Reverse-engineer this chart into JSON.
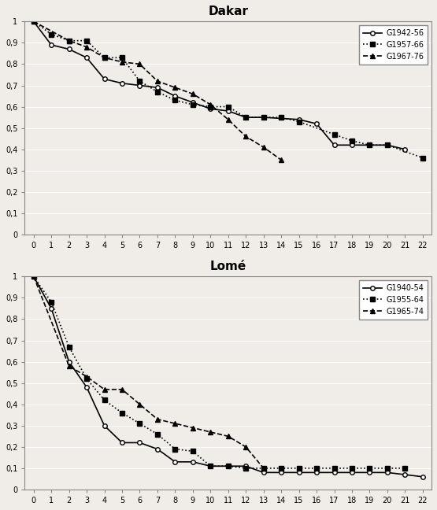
{
  "dakar": {
    "title": "Dakar",
    "x": [
      0,
      1,
      2,
      3,
      4,
      5,
      6,
      7,
      8,
      9,
      10,
      11,
      12,
      13,
      14,
      15,
      16,
      17,
      18,
      19,
      20,
      21,
      22
    ],
    "G1942_56": [
      1.0,
      0.89,
      0.87,
      0.83,
      0.73,
      0.71,
      0.7,
      0.69,
      0.65,
      0.62,
      0.59,
      0.58,
      0.55,
      0.55,
      null,
      0.54,
      0.52,
      0.42,
      0.42,
      0.42,
      0.42,
      0.4,
      null
    ],
    "G1957_66": [
      1.0,
      0.94,
      0.91,
      0.91,
      0.83,
      0.83,
      0.72,
      0.67,
      0.63,
      0.61,
      0.6,
      0.6,
      0.55,
      0.55,
      0.55,
      0.53,
      null,
      0.47,
      0.44,
      0.42,
      0.42,
      null,
      0.36
    ],
    "G1967_76": [
      1.0,
      null,
      0.91,
      0.88,
      0.83,
      0.81,
      0.8,
      0.72,
      0.69,
      0.66,
      0.61,
      0.54,
      0.46,
      0.41,
      0.35,
      null,
      null,
      null,
      null,
      null,
      null,
      null,
      null
    ],
    "legend": [
      "G1942-56",
      "G1957-66",
      "G1967-76"
    ]
  },
  "lome": {
    "title": "Lomé",
    "x": [
      0,
      1,
      2,
      3,
      4,
      5,
      6,
      7,
      8,
      9,
      10,
      11,
      12,
      13,
      14,
      15,
      16,
      17,
      18,
      19,
      20,
      21,
      22
    ],
    "G1940_54": [
      1.0,
      0.85,
      0.6,
      0.48,
      0.3,
      0.22,
      0.22,
      0.19,
      0.13,
      0.13,
      0.11,
      0.11,
      0.11,
      0.08,
      0.08,
      0.08,
      0.08,
      0.08,
      0.08,
      0.08,
      0.08,
      0.07,
      0.06
    ],
    "G1955_64": [
      1.0,
      0.88,
      0.67,
      0.52,
      0.42,
      0.36,
      0.31,
      0.26,
      0.19,
      0.18,
      0.11,
      0.11,
      0.1,
      0.1,
      0.1,
      0.1,
      0.1,
      0.1,
      0.1,
      0.1,
      0.1,
      0.1,
      null
    ],
    "G1965_74": [
      1.0,
      null,
      0.58,
      0.53,
      0.47,
      0.47,
      0.4,
      0.33,
      0.31,
      0.29,
      0.27,
      0.25,
      0.2,
      0.1,
      null,
      null,
      null,
      null,
      null,
      null,
      null,
      null,
      null
    ],
    "legend": [
      "G1940-54",
      "G1955-64",
      "G1965-74"
    ]
  },
  "ylim": [
    0,
    1.0
  ],
  "yticks": [
    0,
    0.1,
    0.2,
    0.3,
    0.4,
    0.5,
    0.6,
    0.7,
    0.8,
    0.9,
    1
  ],
  "ytick_labels": [
    "0",
    "0,1",
    "0,2",
    "0,3",
    "0,4",
    "0,5",
    "0,6",
    "0,7",
    "0,8",
    "0,9",
    "1"
  ],
  "xticks": [
    0,
    1,
    2,
    3,
    4,
    5,
    6,
    7,
    8,
    9,
    10,
    11,
    12,
    13,
    14,
    15,
    16,
    17,
    18,
    19,
    20,
    21,
    22
  ],
  "line1_color": "#000000",
  "line1_style": "-",
  "line1_marker": "o",
  "line2_color": "#000000",
  "line2_style": ":",
  "line2_marker": "s",
  "line3_color": "#000000",
  "line3_style": "--",
  "line3_marker": "^",
  "bg_color": "#f0ede8",
  "fig_bg": "#f0ede8"
}
